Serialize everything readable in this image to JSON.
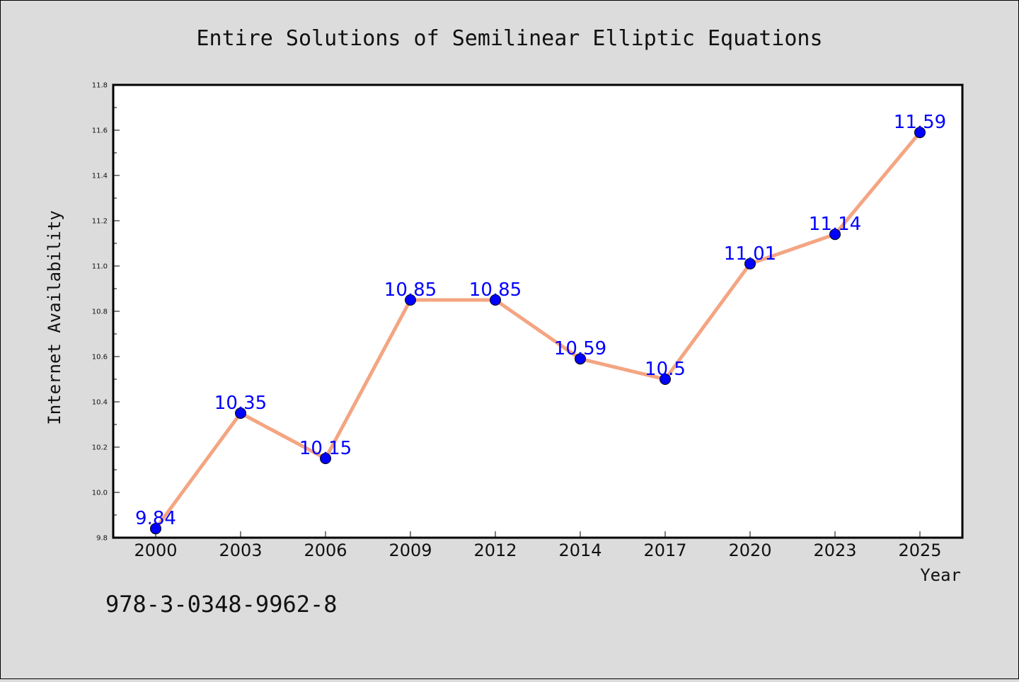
{
  "chart_data": {
    "type": "line",
    "title": "Entire Solutions of Semilinear Elliptic Equations",
    "xlabel": "Year",
    "ylabel": "Internet Availability",
    "categories": [
      "2000",
      "2003",
      "2006",
      "2009",
      "2012",
      "2014",
      "2017",
      "2020",
      "2023",
      "2025"
    ],
    "series": [
      {
        "values": [
          9.84,
          10.35,
          10.15,
          10.85,
          10.85,
          10.59,
          10.5,
          11.01,
          11.14,
          11.59
        ],
        "data_labels": [
          "9.84",
          "10.35",
          "10.15",
          "10.85",
          "10.85",
          "10.59",
          "10.5",
          "11.01",
          "11.14",
          "11.59"
        ],
        "line_color": "#f4a582",
        "marker_color": "#0000ff",
        "label_color": "#0000ff"
      }
    ],
    "ylim": [
      9.8,
      11.8
    ],
    "yticks": [
      "9.8",
      "10.0",
      "10.2",
      "10.4",
      "10.6",
      "10.8",
      "11.0",
      "11.2",
      "11.4",
      "11.6",
      "11.8"
    ],
    "grid": false,
    "legend": "none",
    "annotation": "978-3-0348-9962-8",
    "background_color": "#dcdcdc",
    "plot_background_color": "#ffffff"
  }
}
